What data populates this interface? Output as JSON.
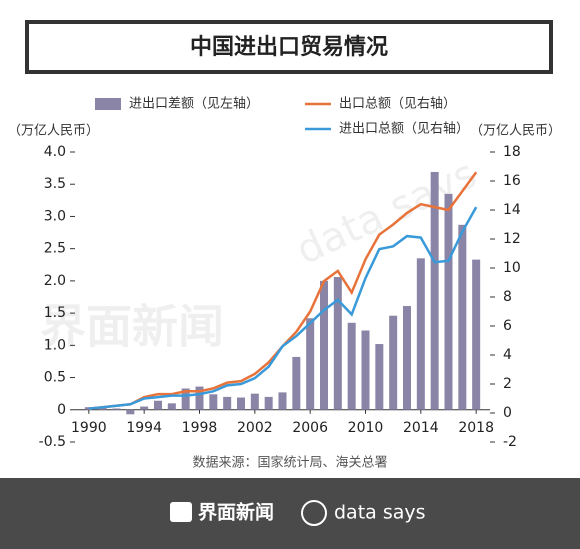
{
  "chart_data": {
    "type": "bar",
    "title": "中国进出口贸易情况",
    "y_label": "（万亿人民币）",
    "y2_label": "（万亿人民币）",
    "source": "数据来源：国家统计局、海关总署",
    "brand": "界面新闻",
    "brand2": "data says",
    "x": [
      1990,
      1991,
      1992,
      1993,
      1994,
      1995,
      1996,
      1997,
      1998,
      1999,
      2000,
      2001,
      2002,
      2003,
      2004,
      2005,
      2006,
      2007,
      2008,
      2009,
      2010,
      2011,
      2012,
      2013,
      2014,
      2015,
      2016,
      2017,
      2018
    ],
    "xlim": [
      1989,
      2019
    ],
    "xticks": [
      1990,
      1994,
      1998,
      2002,
      2006,
      2010,
      2014,
      2018
    ],
    "ylim": [
      -0.5,
      4.0
    ],
    "yticks": [
      -0.5,
      0,
      0.5,
      {
        "value": 1,
        "label": "1.0"
      },
      1.5,
      {
        "value": 2,
        "label": "2.0"
      },
      2.5,
      {
        "value": 3,
        "label": "3.0"
      },
      3.5,
      {
        "value": 4,
        "label": "4.0"
      }
    ],
    "y2lim": [
      -2,
      18
    ],
    "y2ticks": [
      -2,
      0,
      2,
      4,
      6,
      8,
      10,
      12,
      14,
      16,
      18
    ],
    "series": [
      {
        "name": "进出口差额（见左轴）",
        "type": "bar",
        "color": "#8a84a6",
        "values": [
          0.04,
          0.04,
          0.02,
          -0.07,
          0.05,
          0.14,
          0.1,
          0.33,
          0.36,
          0.24,
          0.2,
          0.19,
          0.25,
          0.2,
          0.27,
          0.82,
          1.42,
          2.0,
          2.06,
          1.35,
          1.23,
          1.02,
          1.46,
          1.61,
          2.35,
          3.69,
          3.35,
          2.87,
          2.33
        ]
      },
      {
        "name": "出口总额（见右轴）",
        "type": "line",
        "axis": "y2",
        "color": "#e8733a",
        "values": [
          0.3,
          0.4,
          0.5,
          0.6,
          1.1,
          1.3,
          1.3,
          1.5,
          1.5,
          1.7,
          2.1,
          2.2,
          2.7,
          3.5,
          4.6,
          5.6,
          7.0,
          9.1,
          9.8,
          8.3,
          10.6,
          12.3,
          13.0,
          13.8,
          14.4,
          14.2,
          14.0,
          15.3,
          16.6
        ]
      },
      {
        "name": "进出口总额（见右轴）",
        "type": "line",
        "axis": "y2",
        "color": "#3a9ad9",
        "values": [
          0.3,
          0.4,
          0.5,
          0.6,
          1.0,
          1.1,
          1.2,
          1.2,
          1.3,
          1.5,
          1.9,
          2.0,
          2.4,
          3.2,
          4.6,
          5.3,
          6.2,
          7.1,
          7.8,
          6.8,
          9.3,
          11.3,
          11.5,
          12.2,
          12.1,
          10.4,
          10.5,
          12.5,
          14.2
        ]
      }
    ]
  }
}
